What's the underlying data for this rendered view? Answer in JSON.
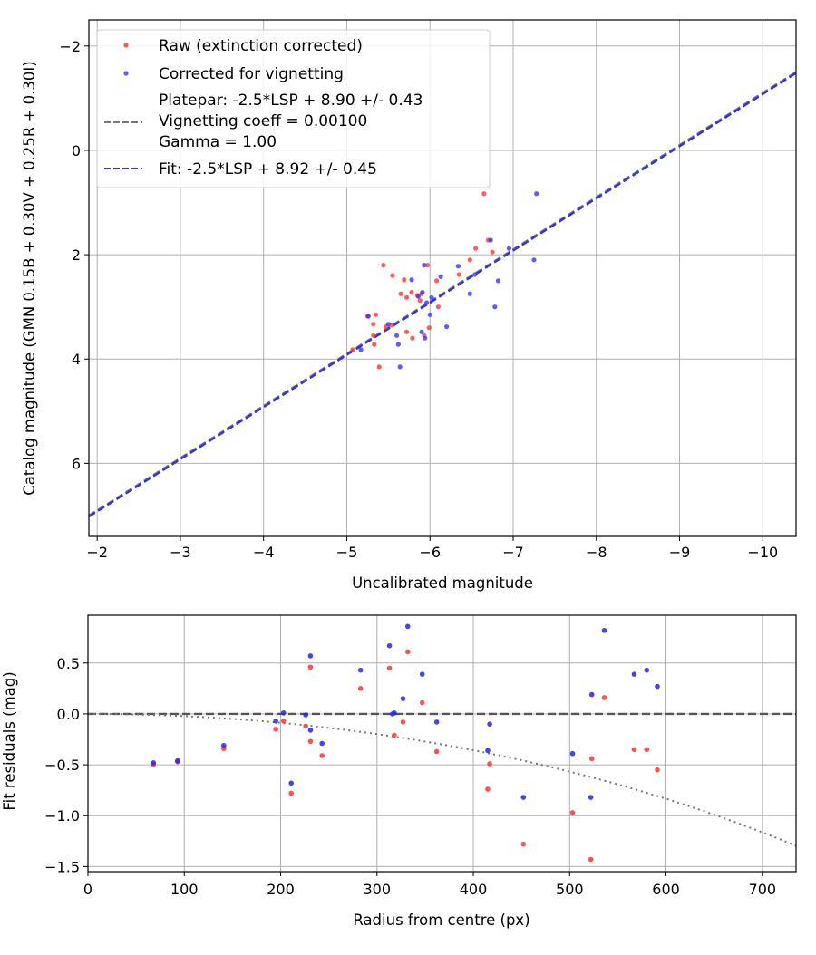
{
  "chart_data": [
    {
      "type": "scatter",
      "xlabel": "Uncalibrated magnitude",
      "ylabel": "Catalog magnitude (GMN 0.15B + 0.30V + 0.25R + 0.30I)",
      "xlim": [
        -1.9,
        -10.4
      ],
      "ylim": [
        7.4,
        -2.5
      ],
      "xticks": [
        -2,
        -3,
        -4,
        -5,
        -6,
        -7,
        -8,
        -9,
        -10
      ],
      "xtick_labels": [
        "−2",
        "−3",
        "−4",
        "−5",
        "−6",
        "−7",
        "−8",
        "−9",
        "−10"
      ],
      "yticks": [
        -2,
        0,
        2,
        4,
        6
      ],
      "ytick_labels": [
        "−2",
        "0",
        "2",
        "4",
        "6"
      ],
      "grid": true,
      "legend_position": "top-left",
      "series": [
        {
          "name": "Raw (extinction corrected)",
          "color": "#ff3333",
          "points": [
            [
              -5.07,
              3.82
            ],
            [
              -5.25,
              3.18
            ],
            [
              -5.32,
              3.33
            ],
            [
              -5.32,
              3.55
            ],
            [
              -5.33,
              3.72
            ],
            [
              -5.35,
              3.15
            ],
            [
              -5.39,
              4.15
            ],
            [
              -5.44,
              2.2
            ],
            [
              -5.47,
              3.38
            ],
            [
              -5.54,
              3.35
            ],
            [
              -5.55,
              2.4
            ],
            [
              -5.65,
              2.75
            ],
            [
              -5.69,
              2.48
            ],
            [
              -5.72,
              3.48
            ],
            [
              -5.72,
              2.82
            ],
            [
              -5.78,
              2.72
            ],
            [
              -5.79,
              3.6
            ],
            [
              -5.85,
              2.78
            ],
            [
              -5.88,
              2.88
            ],
            [
              -5.9,
              2.75
            ],
            [
              -5.93,
              3.55
            ],
            [
              -5.97,
              2.2
            ],
            [
              -5.99,
              3.4
            ],
            [
              -6.08,
              2.5
            ],
            [
              -6.1,
              3.0
            ],
            [
              -6.35,
              2.38
            ],
            [
              -6.48,
              2.1
            ],
            [
              -6.55,
              1.88
            ],
            [
              -6.65,
              0.83
            ],
            [
              -6.7,
              1.72
            ],
            [
              -6.75,
              1.95
            ]
          ]
        },
        {
          "name": "Corrected for vignetting",
          "color": "#3333ff",
          "points": [
            [
              -5.17,
              3.82
            ],
            [
              -5.26,
              3.18
            ],
            [
              -5.5,
              3.33
            ],
            [
              -5.6,
              3.55
            ],
            [
              -5.62,
              3.72
            ],
            [
              -5.64,
              4.15
            ],
            [
              -5.78,
              2.48
            ],
            [
              -5.86,
              2.8
            ],
            [
              -5.9,
              3.48
            ],
            [
              -5.91,
              2.72
            ],
            [
              -5.93,
              2.2
            ],
            [
              -5.94,
              3.6
            ],
            [
              -5.96,
              2.92
            ],
            [
              -6.0,
              3.15
            ],
            [
              -6.02,
              2.82
            ],
            [
              -6.13,
              2.42
            ],
            [
              -6.2,
              3.38
            ],
            [
              -6.34,
              2.22
            ],
            [
              -6.48,
              2.75
            ],
            [
              -6.54,
              2.38
            ],
            [
              -6.73,
              1.72
            ],
            [
              -6.78,
              3.0
            ],
            [
              -6.82,
              2.5
            ],
            [
              -6.95,
              1.88
            ],
            [
              -7.25,
              2.1
            ],
            [
              -7.28,
              0.83
            ]
          ]
        }
      ],
      "lines": [
        {
          "name": "Platepar: -2.5*LSP + 8.90 +/- 0.43\nVignetting coeff = 0.00100\nGamma = 1.00",
          "color": "#777777",
          "style": "dashed",
          "intercept": 8.9,
          "slope": 1.0
        },
        {
          "name": "Fit: -2.5*LSP + 8.92 +/- 0.45",
          "color": "#3333dd",
          "style": "dashed",
          "intercept": 8.92,
          "slope": 1.0
        }
      ]
    },
    {
      "type": "scatter",
      "xlabel": "Radius from centre (px)",
      "ylabel": "Fit residuals (mag)",
      "xlim": [
        0,
        735
      ],
      "ylim": [
        -1.55,
        0.97
      ],
      "xticks": [
        0,
        100,
        200,
        300,
        400,
        500,
        600,
        700
      ],
      "xtick_labels": [
        "0",
        "100",
        "200",
        "300",
        "400",
        "500",
        "600",
        "700"
      ],
      "yticks": [
        -1.5,
        -1.0,
        -0.5,
        0.0,
        0.5
      ],
      "ytick_labels": [
        "−1.5",
        "−1.0",
        "−0.5",
        "0.0",
        "0.5"
      ],
      "grid": true,
      "series": [
        {
          "name": "Raw (extinction corrected)",
          "color": "#ff3333",
          "points": [
            [
              68,
              -0.5
            ],
            [
              93,
              -0.47
            ],
            [
              141,
              -0.34
            ],
            [
              195,
              -0.15
            ],
            [
              203,
              -0.07
            ],
            [
              211,
              -0.78
            ],
            [
              226,
              -0.12
            ],
            [
              231,
              0.46
            ],
            [
              231,
              -0.27
            ],
            [
              243,
              -0.41
            ],
            [
              283,
              0.25
            ],
            [
              313,
              0.45
            ],
            [
              318,
              -0.21
            ],
            [
              327,
              -0.08
            ],
            [
              332,
              0.61
            ],
            [
              347,
              0.11
            ],
            [
              362,
              -0.37
            ],
            [
              415,
              -0.74
            ],
            [
              417,
              -0.49
            ],
            [
              452,
              -1.28
            ],
            [
              503,
              -0.97
            ],
            [
              522,
              -1.43
            ],
            [
              523,
              -0.44
            ],
            [
              536,
              0.16
            ],
            [
              567,
              -0.35
            ],
            [
              580,
              -0.35
            ],
            [
              591,
              -0.55
            ]
          ]
        },
        {
          "name": "Corrected for vignetting",
          "color": "#2222ee",
          "points": [
            [
              68,
              -0.48
            ],
            [
              93,
              -0.46
            ],
            [
              141,
              -0.31
            ],
            [
              195,
              -0.07
            ],
            [
              203,
              0.01
            ],
            [
              211,
              -0.68
            ],
            [
              226,
              -0.01
            ],
            [
              231,
              0.57
            ],
            [
              231,
              -0.16
            ],
            [
              243,
              -0.29
            ],
            [
              283,
              0.43
            ],
            [
              313,
              0.67
            ],
            [
              316,
              0.0
            ],
            [
              318,
              0.01
            ],
            [
              327,
              0.15
            ],
            [
              332,
              0.86
            ],
            [
              347,
              0.39
            ],
            [
              362,
              -0.08
            ],
            [
              415,
              -0.36
            ],
            [
              417,
              -0.1
            ],
            [
              452,
              -0.82
            ],
            [
              503,
              -0.39
            ],
            [
              522,
              -0.82
            ],
            [
              523,
              0.19
            ],
            [
              536,
              0.82
            ],
            [
              567,
              0.39
            ],
            [
              580,
              0.43
            ],
            [
              591,
              0.27
            ]
          ]
        }
      ],
      "lines": [
        {
          "name": "zero",
          "color": "#555555",
          "style": "dashed",
          "y": 0.0
        },
        {
          "name": "vignetting model",
          "color": "#777777",
          "style": "dotted",
          "vignetting_coeff": 0.001,
          "gamma": 1.0
        }
      ]
    }
  ]
}
